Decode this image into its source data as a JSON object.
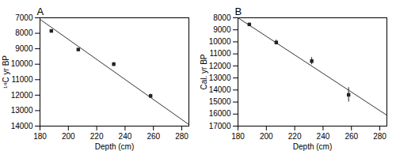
{
  "chart_data": [
    {
      "type": "scatter",
      "title": "A",
      "xlabel": "Depth (cm)",
      "ylabel": "¹⁴C yr BP",
      "xlim": [
        180,
        285
      ],
      "ylim": [
        14000,
        7000
      ],
      "xticks": [
        180,
        200,
        220,
        240,
        260,
        280
      ],
      "yticks": [
        7000,
        8000,
        9000,
        10000,
        11000,
        12000,
        13000,
        14000
      ],
      "series": [
        {
          "type": "line",
          "color": "#333333",
          "x": [
            180,
            285
          ],
          "values": [
            7100,
            13900
          ]
        },
        {
          "type": "scatter",
          "marker": "square",
          "color": "#222222",
          "x": [
            188,
            207,
            232,
            258
          ],
          "values": [
            7850,
            9050,
            10000,
            12050
          ],
          "yerr": [
            70,
            60,
            120,
            120
          ]
        }
      ]
    },
    {
      "type": "scatter",
      "title": "B",
      "xlabel": "Depth (cm)",
      "ylabel": "Cal. yr BP",
      "xlim": [
        180,
        285
      ],
      "ylim": [
        17000,
        8000
      ],
      "xticks": [
        180,
        200,
        220,
        240,
        260,
        280
      ],
      "yticks": [
        8000,
        9000,
        10000,
        11000,
        12000,
        13000,
        14000,
        15000,
        16000,
        17000
      ],
      "series": [
        {
          "type": "line",
          "color": "#333333",
          "x": [
            180,
            285
          ],
          "values": [
            8000,
            16100
          ]
        },
        {
          "type": "scatter",
          "marker": "square",
          "color": "#222222",
          "x": [
            188,
            207,
            232,
            258
          ],
          "values": [
            8550,
            10050,
            11600,
            14400
          ],
          "yerr": [
            100,
            200,
            300,
            600
          ]
        }
      ]
    }
  ]
}
